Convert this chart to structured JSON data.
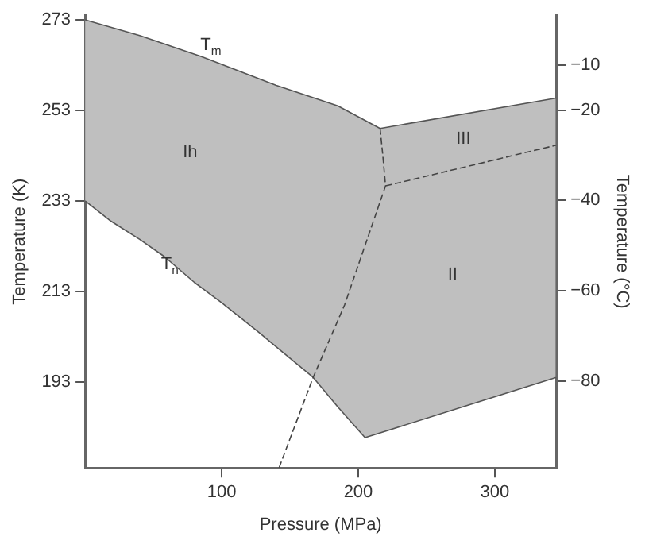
{
  "chart_data": {
    "type": "line",
    "xlabel": "Pressure (MPa)",
    "ylabel": "Temperature (K)",
    "y2label": "Temperature (°C)",
    "xlim": [
      0,
      345
    ],
    "xticks": [
      100,
      200,
      300
    ],
    "ylim": [
      174,
      274
    ],
    "yticks": [
      193,
      213,
      233,
      253,
      273
    ],
    "y2lim": [
      -99.3,
      1
    ],
    "y2ticks": [
      -80,
      -60,
      -40,
      -20,
      -10
    ],
    "grid": false,
    "legend": false,
    "marker": "none",
    "series": [
      {
        "type": "area",
        "color": "#bfbfbf",
        "x": [
          0,
          40,
          84,
          140,
          185,
          216,
          345,
          345,
          205,
          185,
          167,
          145,
          127,
          100,
          80,
          58,
          40,
          19,
          0
        ],
        "values": [
          273,
          269.5,
          265,
          258.5,
          254,
          249,
          255.7,
          194,
          180.7,
          187.5,
          194,
          199.5,
          204,
          210.5,
          215,
          220.7,
          224.5,
          228.5,
          233
        ]
      },
      {
        "type": "line",
        "color": "#444444",
        "line_style": "dashed",
        "x": [
          216,
          218,
          220,
          190,
          167,
          142
        ],
        "values": [
          249,
          243,
          236.3,
          210,
          194,
          174
        ]
      },
      {
        "type": "line",
        "color": "#444444",
        "line_style": "dashed",
        "x": [
          220,
          345
        ],
        "values": [
          236.3,
          245.3
        ]
      }
    ],
    "annotations": [
      "T$_{m}$",
      {
        "text": "T$_{n}$",
        "x": 62,
        "y": 219
      },
      "Ih",
      "III",
      "II"
    ]
  }
}
